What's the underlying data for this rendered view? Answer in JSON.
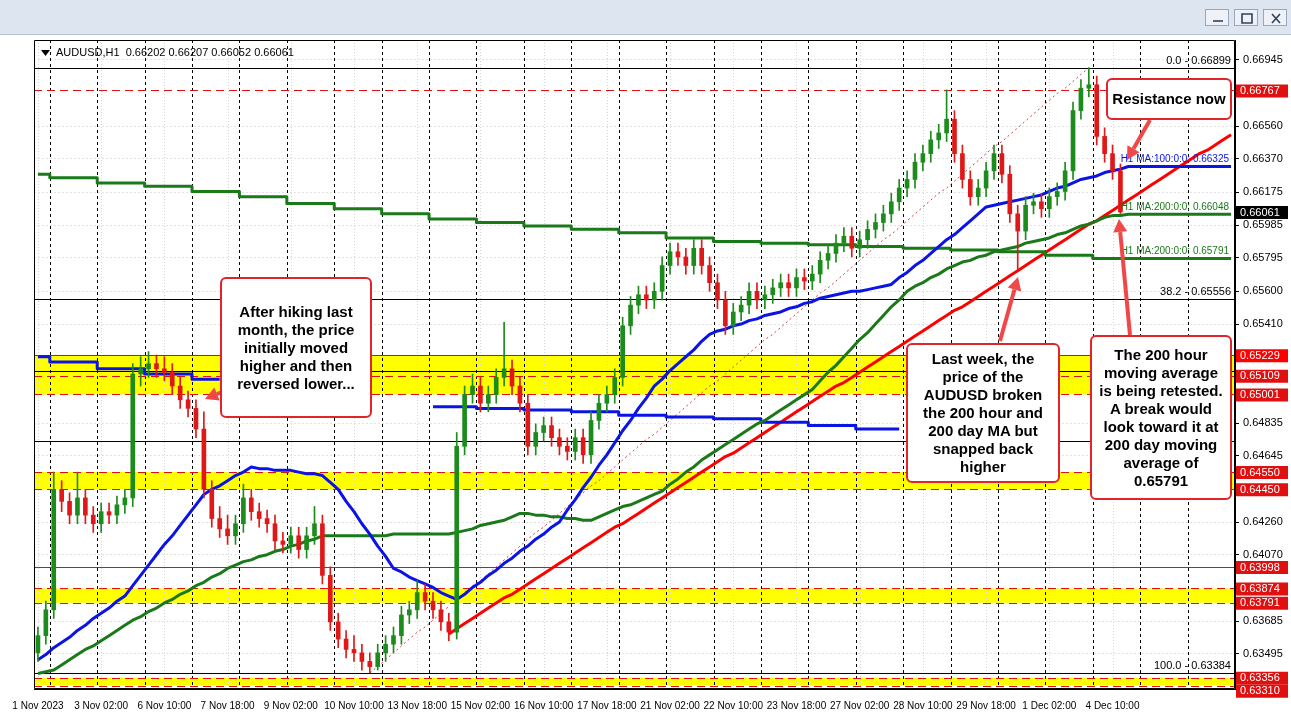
{
  "chart_data": {
    "type": "candlestick",
    "title": "AUDUSD,H1  0.66202 0.66207 0.66052 0.66061",
    "categories": [
      "1 Nov 2023",
      null,
      null,
      null,
      null,
      null,
      null,
      null,
      "3 Nov 02:00",
      null,
      null,
      null,
      null,
      null,
      null,
      null,
      "6 Nov 10:00",
      null,
      null,
      null,
      null,
      null,
      null,
      null,
      "7 Nov 18:00",
      null,
      null,
      null,
      null,
      null,
      null,
      null,
      "9 Nov 02:00",
      null,
      null,
      null,
      null,
      null,
      null,
      null,
      "10 Nov 10:00",
      null,
      null,
      null,
      null,
      null,
      null,
      null,
      "13 Nov 18:00",
      null,
      null,
      null,
      null,
      null,
      null,
      null,
      "15 Nov 02:00",
      null,
      null,
      null,
      null,
      null,
      null,
      null,
      "16 Nov 10:00",
      null,
      null,
      null,
      null,
      null,
      null,
      null,
      "17 Nov 18:00",
      null,
      null,
      null,
      null,
      null,
      null,
      null,
      "21 Nov 02:00",
      null,
      null,
      null,
      null,
      null,
      null,
      null,
      "22 Nov 10:00",
      null,
      null,
      null,
      null,
      null,
      null,
      null,
      "23 Nov 18:00",
      null,
      null,
      null,
      null,
      null,
      null,
      null,
      "27 Nov 02:00",
      null,
      null,
      null,
      null,
      null,
      null,
      null,
      "28 Nov 10:00",
      null,
      null,
      null,
      null,
      null,
      null,
      null,
      "29 Nov 18:00",
      null,
      null,
      null,
      null,
      null,
      null,
      null,
      "1 Dec 02:00",
      null,
      null,
      null,
      null,
      null,
      null,
      null,
      "4 Dec 10:00",
      null,
      null,
      null,
      null,
      null,
      null,
      null,
      null,
      null,
      null,
      null,
      null,
      null,
      null,
      null
    ],
    "ohlc": [
      [
        0.635,
        0.6365,
        0.6345,
        0.636
      ],
      [
        0.636,
        0.638,
        0.6355,
        0.6375
      ],
      [
        0.6375,
        0.6455,
        0.637,
        0.6445
      ],
      [
        0.6445,
        0.645,
        0.6432,
        0.6438
      ],
      [
        0.6438,
        0.6443,
        0.6425,
        0.643
      ],
      [
        0.643,
        0.6455,
        0.6425,
        0.644
      ],
      [
        0.644,
        0.6445,
        0.6425,
        0.643
      ],
      [
        0.643,
        0.6435,
        0.642,
        0.6425
      ],
      [
        0.6425,
        0.6437,
        0.642,
        0.6432
      ],
      [
        0.6432,
        0.6437,
        0.6425,
        0.643
      ],
      [
        0.643,
        0.6441,
        0.6425,
        0.6436
      ],
      [
        0.6436,
        0.6445,
        0.6431,
        0.644
      ],
      [
        0.644,
        0.6518,
        0.6435,
        0.6512
      ],
      [
        0.6512,
        0.6522,
        0.6505,
        0.6515
      ],
      [
        0.6515,
        0.6525,
        0.651,
        0.6518
      ],
      [
        0.6518,
        0.6523,
        0.651,
        0.6515
      ],
      [
        0.6515,
        0.6522,
        0.6508,
        0.6513
      ],
      [
        0.6513,
        0.6518,
        0.65,
        0.6505
      ],
      [
        0.6505,
        0.651,
        0.6492,
        0.6497
      ],
      [
        0.6497,
        0.6502,
        0.6487,
        0.6492
      ],
      [
        0.6492,
        0.6497,
        0.6475,
        0.648
      ],
      [
        0.648,
        0.649,
        0.644,
        0.6445
      ],
      [
        0.6445,
        0.645,
        0.6423,
        0.6428
      ],
      [
        0.6428,
        0.6435,
        0.6417,
        0.6422
      ],
      [
        0.6422,
        0.643,
        0.6413,
        0.6418
      ],
      [
        0.6418,
        0.643,
        0.6413,
        0.6425
      ],
      [
        0.6425,
        0.6448,
        0.642,
        0.644
      ],
      [
        0.644,
        0.6445,
        0.6427,
        0.6432
      ],
      [
        0.6432,
        0.6437,
        0.6423,
        0.6428
      ],
      [
        0.6428,
        0.6433,
        0.642,
        0.6425
      ],
      [
        0.6425,
        0.643,
        0.641,
        0.6415
      ],
      [
        0.6415,
        0.642,
        0.6408,
        0.6413
      ],
      [
        0.6413,
        0.6423,
        0.6408,
        0.6418
      ],
      [
        0.6418,
        0.6423,
        0.6405,
        0.641
      ],
      [
        0.641,
        0.6423,
        0.6405,
        0.6418
      ],
      [
        0.6418,
        0.6435,
        0.6413,
        0.6425
      ],
      [
        0.6425,
        0.643,
        0.639,
        0.6395
      ],
      [
        0.6395,
        0.64,
        0.6363,
        0.6368
      ],
      [
        0.6368,
        0.6373,
        0.6353,
        0.6358
      ],
      [
        0.6358,
        0.6363,
        0.6347,
        0.6352
      ],
      [
        0.6352,
        0.636,
        0.6345,
        0.635
      ],
      [
        0.635,
        0.6355,
        0.634,
        0.6345
      ],
      [
        0.6345,
        0.635,
        0.63384,
        0.6342
      ],
      [
        0.6342,
        0.6355,
        0.634,
        0.635
      ],
      [
        0.635,
        0.636,
        0.6345,
        0.6355
      ],
      [
        0.6355,
        0.6365,
        0.635,
        0.636
      ],
      [
        0.636,
        0.6377,
        0.6355,
        0.6372
      ],
      [
        0.6372,
        0.638,
        0.6367,
        0.6375
      ],
      [
        0.6375,
        0.6392,
        0.637,
        0.6385
      ],
      [
        0.6385,
        0.639,
        0.6375,
        0.638
      ],
      [
        0.638,
        0.6385,
        0.637,
        0.6375
      ],
      [
        0.6375,
        0.638,
        0.6363,
        0.6368
      ],
      [
        0.6368,
        0.6373,
        0.6357,
        0.6362
      ],
      [
        0.6362,
        0.6478,
        0.6358,
        0.647
      ],
      [
        0.647,
        0.6505,
        0.6465,
        0.65
      ],
      [
        0.65,
        0.6512,
        0.6495,
        0.6505
      ],
      [
        0.6505,
        0.651,
        0.649,
        0.6495
      ],
      [
        0.6495,
        0.6505,
        0.649,
        0.65
      ],
      [
        0.65,
        0.6515,
        0.6495,
        0.651
      ],
      [
        0.651,
        0.6542,
        0.6505,
        0.6515
      ],
      [
        0.6515,
        0.652,
        0.65,
        0.6505
      ],
      [
        0.6505,
        0.651,
        0.649,
        0.6495
      ],
      [
        0.6495,
        0.65,
        0.6465,
        0.647
      ],
      [
        0.647,
        0.6483,
        0.6465,
        0.6478
      ],
      [
        0.6478,
        0.6487,
        0.6473,
        0.6482
      ],
      [
        0.6482,
        0.6487,
        0.647,
        0.6475
      ],
      [
        0.6475,
        0.648,
        0.6465,
        0.647
      ],
      [
        0.647,
        0.6475,
        0.6462,
        0.6467
      ],
      [
        0.6467,
        0.648,
        0.6462,
        0.6475
      ],
      [
        0.6475,
        0.648,
        0.646,
        0.6465
      ],
      [
        0.6465,
        0.649,
        0.646,
        0.6485
      ],
      [
        0.6485,
        0.65,
        0.648,
        0.6495
      ],
      [
        0.6495,
        0.6505,
        0.649,
        0.65
      ],
      [
        0.65,
        0.6515,
        0.6495,
        0.651
      ],
      [
        0.651,
        0.6545,
        0.6505,
        0.654
      ],
      [
        0.654,
        0.6557,
        0.6535,
        0.6552
      ],
      [
        0.6552,
        0.6563,
        0.6547,
        0.6558
      ],
      [
        0.6558,
        0.6563,
        0.655,
        0.6555
      ],
      [
        0.6555,
        0.6565,
        0.655,
        0.656
      ],
      [
        0.656,
        0.658,
        0.6555,
        0.6575
      ],
      [
        0.6575,
        0.6588,
        0.657,
        0.6583
      ],
      [
        0.6583,
        0.6588,
        0.6575,
        0.658
      ],
      [
        0.658,
        0.6585,
        0.657,
        0.6575
      ],
      [
        0.6575,
        0.659,
        0.657,
        0.6585
      ],
      [
        0.6585,
        0.659,
        0.657,
        0.6575
      ],
      [
        0.6575,
        0.658,
        0.656,
        0.6565
      ],
      [
        0.6565,
        0.657,
        0.655,
        0.6555
      ],
      [
        0.6555,
        0.656,
        0.6535,
        0.654
      ],
      [
        0.654,
        0.6553,
        0.6535,
        0.6548
      ],
      [
        0.6548,
        0.6557,
        0.6543,
        0.6552
      ],
      [
        0.6552,
        0.6565,
        0.6547,
        0.656
      ],
      [
        0.656,
        0.6565,
        0.655,
        0.6555
      ],
      [
        0.6555,
        0.6563,
        0.655,
        0.6558
      ],
      [
        0.6558,
        0.6567,
        0.6553,
        0.6562
      ],
      [
        0.6562,
        0.657,
        0.6557,
        0.6565
      ],
      [
        0.6565,
        0.657,
        0.6557,
        0.6562
      ],
      [
        0.6562,
        0.6573,
        0.6557,
        0.6568
      ],
      [
        0.6568,
        0.6573,
        0.6561,
        0.6566
      ],
      [
        0.6566,
        0.6575,
        0.6561,
        0.657
      ],
      [
        0.657,
        0.6583,
        0.6565,
        0.6578
      ],
      [
        0.6578,
        0.6587,
        0.6573,
        0.6582
      ],
      [
        0.6582,
        0.6593,
        0.6577,
        0.6588
      ],
      [
        0.6588,
        0.6597,
        0.6583,
        0.6592
      ],
      [
        0.6592,
        0.6597,
        0.658,
        0.6585
      ],
      [
        0.6585,
        0.6595,
        0.658,
        0.659
      ],
      [
        0.659,
        0.6601,
        0.6585,
        0.6596
      ],
      [
        0.6596,
        0.6605,
        0.6591,
        0.66
      ],
      [
        0.66,
        0.661,
        0.6595,
        0.6605
      ],
      [
        0.6605,
        0.6617,
        0.66,
        0.6612
      ],
      [
        0.6612,
        0.6625,
        0.6607,
        0.662
      ],
      [
        0.662,
        0.663,
        0.6615,
        0.6625
      ],
      [
        0.6625,
        0.664,
        0.662,
        0.6635
      ],
      [
        0.6635,
        0.6645,
        0.663,
        0.664
      ],
      [
        0.664,
        0.6653,
        0.6635,
        0.6648
      ],
      [
        0.6648,
        0.6657,
        0.6643,
        0.6652
      ],
      [
        0.6652,
        0.6677,
        0.6647,
        0.666
      ],
      [
        0.666,
        0.6665,
        0.6635,
        0.664
      ],
      [
        0.664,
        0.6645,
        0.662,
        0.6625
      ],
      [
        0.6625,
        0.663,
        0.661,
        0.6615
      ],
      [
        0.6615,
        0.6625,
        0.661,
        0.662
      ],
      [
        0.662,
        0.6635,
        0.6615,
        0.663
      ],
      [
        0.663,
        0.6645,
        0.6625,
        0.664
      ],
      [
        0.664,
        0.6645,
        0.6623,
        0.6628
      ],
      [
        0.6628,
        0.6633,
        0.66,
        0.6605
      ],
      [
        0.6605,
        0.661,
        0.6573,
        0.6595
      ],
      [
        0.6595,
        0.6615,
        0.659,
        0.661
      ],
      [
        0.661,
        0.6617,
        0.6605,
        0.6612
      ],
      [
        0.6612,
        0.6617,
        0.6603,
        0.6608
      ],
      [
        0.6608,
        0.662,
        0.6603,
        0.6615
      ],
      [
        0.6615,
        0.6623,
        0.661,
        0.6618
      ],
      [
        0.6618,
        0.6635,
        0.6613,
        0.663
      ],
      [
        0.663,
        0.667,
        0.6625,
        0.6665
      ],
      [
        0.6665,
        0.6683,
        0.666,
        0.6678
      ],
      [
        0.6678,
        0.66899,
        0.6673,
        0.668
      ],
      [
        0.668,
        0.6685,
        0.6645,
        0.665
      ],
      [
        0.665,
        0.6655,
        0.6635,
        0.664
      ],
      [
        0.664,
        0.6645,
        0.6625,
        0.663
      ],
      [
        0.663,
        0.6634,
        0.66052,
        0.66061
      ],
      null,
      null,
      null,
      null,
      null,
      null,
      null,
      null,
      null,
      null,
      null,
      null,
      null,
      null
    ],
    "series": [
      {
        "type": "line",
        "name": "H1 MA:100:0:0: 0.66325",
        "color": "#0a14e6",
        "values": [
          0.6346,
          0.6349,
          0.6353,
          0.6356,
          0.6359,
          0.6363,
          0.6366,
          0.637,
          0.6373,
          0.6376,
          0.638,
          0.6383,
          0.6389,
          0.6395,
          0.6401,
          0.6407,
          0.6413,
          0.6418,
          0.6424,
          0.643,
          0.6436,
          0.6442,
          0.6445,
          0.6447,
          0.645,
          0.6453,
          0.6455,
          0.6458,
          0.6457,
          0.6457,
          0.6456,
          0.6456,
          0.6456,
          0.6455,
          0.6454,
          0.6454,
          0.6453,
          0.6449,
          0.6445,
          0.6438,
          0.6432,
          0.6425,
          0.6419,
          0.6412,
          0.6406,
          0.6399,
          0.6397,
          0.6394,
          0.6392,
          0.639,
          0.6388,
          0.6385,
          0.6383,
          0.6381,
          0.6384,
          0.6388,
          0.6391,
          0.6395,
          0.6398,
          0.6402,
          0.6405,
          0.6409,
          0.6412,
          0.6416,
          0.6419,
          0.6423,
          0.6426,
          0.6433,
          0.6439,
          0.6446,
          0.6452,
          0.6459,
          0.6465,
          0.6472,
          0.6479,
          0.6485,
          0.6492,
          0.6498,
          0.6505,
          0.6509,
          0.6514,
          0.6518,
          0.6522,
          0.6526,
          0.6531,
          0.6535,
          0.6537,
          0.6538,
          0.654,
          0.6541,
          0.6543,
          0.6544,
          0.6546,
          0.6547,
          0.6548,
          0.655,
          0.6551,
          0.6553,
          0.6554,
          0.6556,
          0.6557,
          0.6558,
          0.6559,
          0.656,
          0.656,
          0.6561,
          0.6562,
          0.6563,
          0.6564,
          0.6568,
          0.6571,
          0.6575,
          0.6578,
          0.6582,
          0.6586,
          0.659,
          0.6593,
          0.6597,
          0.6601,
          0.6605,
          0.6609,
          0.661,
          0.6611,
          0.6612,
          0.6613,
          0.6614,
          0.6615,
          0.6616,
          0.6618,
          0.662,
          0.6621,
          0.6623,
          0.6625,
          0.6626,
          0.6627,
          0.6629,
          0.663,
          0.6631,
          0.66325,
          0.66325,
          0.66325,
          0.66325,
          0.66325,
          0.66325,
          0.66325,
          0.66325,
          0.66325,
          0.66325,
          0.66325,
          0.66325,
          0.66325,
          0.66325
        ]
      },
      {
        "type": "line",
        "name": "H1 MA:200:0:0: 0.66048",
        "color": "#1a7a1a",
        "values": [
          0.6338,
          0.6339,
          0.634,
          0.6343,
          0.6346,
          0.6349,
          0.6352,
          0.6354,
          0.6357,
          0.636,
          0.6363,
          0.6366,
          0.6369,
          0.6371,
          0.6374,
          0.6376,
          0.6379,
          0.6381,
          0.6384,
          0.6386,
          0.6389,
          0.6391,
          0.6394,
          0.6396,
          0.6399,
          0.6401,
          0.6403,
          0.6404,
          0.6406,
          0.6407,
          0.6409,
          0.641,
          0.6412,
          0.6413,
          0.6415,
          0.6416,
          0.6418,
          0.6418,
          0.6418,
          0.6418,
          0.6418,
          0.6418,
          0.6418,
          0.6418,
          0.6418,
          0.6419,
          0.6419,
          0.6419,
          0.6419,
          0.6419,
          0.6419,
          0.6419,
          0.6419,
          0.642,
          0.6421,
          0.6422,
          0.6424,
          0.6425,
          0.6426,
          0.6427,
          0.6429,
          0.6431,
          0.6431,
          0.643,
          0.643,
          0.6429,
          0.6429,
          0.6428,
          0.6428,
          0.6427,
          0.6427,
          0.6429,
          0.6431,
          0.6433,
          0.6435,
          0.6436,
          0.6438,
          0.644,
          0.6442,
          0.6444,
          0.6448,
          0.6451,
          0.6455,
          0.6458,
          0.6462,
          0.6465,
          0.6468,
          0.6471,
          0.6474,
          0.6477,
          0.648,
          0.6483,
          0.6485,
          0.6488,
          0.6491,
          0.6494,
          0.6497,
          0.65,
          0.6503,
          0.6508,
          0.6513,
          0.6517,
          0.6522,
          0.6527,
          0.6532,
          0.6536,
          0.6541,
          0.6546,
          0.6551,
          0.6555,
          0.656,
          0.6563,
          0.6565,
          0.6568,
          0.657,
          0.6573,
          0.6575,
          0.6577,
          0.6578,
          0.658,
          0.6581,
          0.6583,
          0.6584,
          0.6585,
          0.6586,
          0.6588,
          0.6589,
          0.659,
          0.6591,
          0.6593,
          0.6594,
          0.6596,
          0.6598,
          0.6599,
          0.6601,
          0.6603,
          0.6604,
          0.6604,
          0.66048,
          0.66048,
          0.66048,
          0.66048,
          0.66048,
          0.66048,
          0.66048,
          0.66048,
          0.66048,
          0.66048,
          0.66048,
          0.66048,
          0.66048,
          0.66048
        ]
      },
      {
        "type": "step",
        "name": "H1 MA:200:0:0: 0.65791",
        "color": "#1a7a1a",
        "values": [
          0.6628,
          0.6628,
          0.6626,
          0.6626,
          0.6626,
          0.6626,
          0.6626,
          0.6626,
          0.6623,
          0.6623,
          0.6623,
          0.6623,
          0.6623,
          0.6623,
          0.6621,
          0.6621,
          0.6621,
          0.6621,
          0.6621,
          0.6621,
          0.6618,
          0.6618,
          0.6618,
          0.6618,
          0.6618,
          0.6618,
          0.6615,
          0.6615,
          0.6615,
          0.6615,
          0.6615,
          0.6615,
          0.6611,
          0.6611,
          0.6611,
          0.6611,
          0.6611,
          0.6611,
          0.6608,
          0.6608,
          0.6608,
          0.6608,
          0.6608,
          0.6608,
          0.6605,
          0.6605,
          0.6605,
          0.6605,
          0.6605,
          0.6605,
          0.6602,
          0.6602,
          0.6602,
          0.6602,
          0.6602,
          0.6602,
          0.66,
          0.66,
          0.66,
          0.66,
          0.66,
          0.66,
          0.6598,
          0.6598,
          0.6598,
          0.6598,
          0.6598,
          0.6598,
          0.6596,
          0.6596,
          0.6596,
          0.6596,
          0.6596,
          0.6596,
          0.6594,
          0.6594,
          0.6594,
          0.6594,
          0.6594,
          0.6594,
          0.6591,
          0.6591,
          0.6591,
          0.6591,
          0.6591,
          0.6591,
          0.6589,
          0.6589,
          0.6589,
          0.6589,
          0.6589,
          0.6589,
          0.6588,
          0.6588,
          0.6588,
          0.6588,
          0.6588,
          0.6588,
          0.6587,
          0.6587,
          0.6587,
          0.6587,
          0.6587,
          0.6587,
          0.6586,
          0.6586,
          0.6586,
          0.6586,
          0.6586,
          0.6586,
          0.6585,
          0.6585,
          0.6585,
          0.6585,
          0.6585,
          0.6585,
          0.6584,
          0.6584,
          0.6584,
          0.6584,
          0.6584,
          0.6584,
          0.6583,
          0.6583,
          0.6583,
          0.6583,
          0.6583,
          0.6583,
          0.6581,
          0.6581,
          0.6581,
          0.6581,
          0.6581,
          0.6581,
          0.65791,
          0.65791,
          0.65791,
          0.65791,
          0.65791,
          0.65791,
          0.65791,
          0.65791,
          0.65791,
          0.65791,
          0.65791,
          0.65791,
          0.65791,
          0.65791,
          0.65791,
          0.65791,
          0.65791,
          0.65791
        ]
      },
      {
        "type": "step",
        "color": "#0a14e6",
        "values": [
          0.6522,
          0.6522,
          0.6519,
          0.6519,
          0.6519,
          0.6519,
          0.6519,
          0.6519,
          0.6515,
          0.6515,
          0.6515,
          0.6515,
          0.6515,
          0.6515,
          0.6512,
          0.6512,
          0.6512,
          0.6512,
          0.6512,
          0.6512,
          0.6509,
          0.6509,
          0.6509,
          0.6509,
          null,
          null,
          null,
          null,
          null,
          null,
          null,
          null,
          null,
          null,
          null,
          null,
          null,
          null,
          null,
          null,
          null,
          null,
          null,
          null,
          null,
          null,
          null,
          null,
          null,
          null,
          0.6493,
          0.6493,
          0.6493,
          0.6493,
          0.6493,
          0.6493,
          0.6492,
          0.6492,
          0.6492,
          0.6492,
          0.6492,
          0.6492,
          0.6491,
          0.6491,
          0.6491,
          0.6491,
          0.6491,
          0.6491,
          0.649,
          0.649,
          0.649,
          0.649,
          0.649,
          0.649,
          0.6488,
          0.6488,
          0.6488,
          0.6488,
          0.6488,
          0.6488,
          0.6487,
          0.6487,
          0.6487,
          0.6487,
          0.6487,
          0.6487,
          0.6486,
          0.6486,
          0.6486,
          0.6486,
          0.6486,
          0.6486,
          0.6484,
          0.6484,
          0.6484,
          0.6484,
          0.6484,
          0.6484,
          0.6482,
          0.6482,
          0.6482,
          0.6482,
          0.6482,
          0.6482,
          0.648,
          0.648,
          0.648,
          0.648,
          0.648,
          0.648,
          null,
          null,
          null,
          null,
          null,
          null,
          null,
          null,
          null,
          null,
          null,
          null,
          null,
          null,
          null,
          null,
          null,
          null,
          null,
          null,
          null,
          null,
          null,
          null,
          null,
          null,
          null,
          null,
          null,
          null,
          null,
          null,
          null,
          null,
          null,
          null,
          null,
          null,
          null,
          null,
          null,
          null
        ]
      },
      {
        "type": "line",
        "color": "#ff0000",
        "values": [
          null,
          null,
          null,
          null,
          null,
          null,
          null,
          null,
          null,
          null,
          null,
          null,
          null,
          null,
          null,
          null,
          null,
          null,
          null,
          null,
          null,
          null,
          null,
          null,
          null,
          null,
          null,
          null,
          null,
          null,
          null,
          null,
          null,
          null,
          null,
          null,
          null,
          null,
          null,
          null,
          null,
          null,
          null,
          null,
          null,
          null,
          null,
          null,
          null,
          null,
          null,
          null,
          0.6361,
          0.6364,
          0.6367,
          0.637,
          0.6373,
          0.6376,
          0.6379,
          0.6382,
          0.6384,
          0.6387,
          0.639,
          0.6393,
          0.6396,
          0.6399,
          0.6402,
          0.6405,
          0.6408,
          0.6411,
          0.6414,
          0.6417,
          0.642,
          0.6423,
          0.6425,
          0.6428,
          0.6431,
          0.6434,
          0.6437,
          0.644,
          0.6443,
          0.6446,
          0.6449,
          0.6452,
          0.6455,
          0.6458,
          0.6461,
          0.6464,
          0.6466,
          0.6469,
          0.6472,
          0.6475,
          0.6478,
          0.6481,
          0.6484,
          0.6487,
          0.649,
          0.6493,
          0.6496,
          0.6499,
          0.6502,
          0.6505,
          0.6507,
          0.651,
          0.6513,
          0.6516,
          0.6519,
          0.6522,
          0.6525,
          0.6528,
          0.6531,
          0.6534,
          0.6537,
          0.654,
          0.6543,
          0.6546,
          0.6549,
          0.6551,
          0.6554,
          0.6557,
          0.656,
          0.6563,
          0.6566,
          0.6569,
          0.6572,
          0.6575,
          0.6578,
          0.6581,
          0.6584,
          0.6587,
          0.659,
          0.6593,
          0.6596,
          0.6599,
          0.6601,
          0.6604,
          0.6607,
          0.661,
          0.6613,
          0.6616,
          0.6619,
          0.6622,
          0.6625,
          0.6628,
          0.6631,
          0.6634,
          0.6637,
          0.664,
          0.6642,
          0.6645,
          0.6648,
          0.6651
        ]
      },
      {
        "type": "line",
        "color": "#d04040",
        "line_style": "dotted",
        "values": [
          null,
          null,
          null,
          null,
          null,
          null,
          null,
          null,
          null,
          null,
          null,
          null,
          null,
          null,
          null,
          null,
          null,
          null,
          null,
          null,
          null,
          null,
          null,
          null,
          null,
          null,
          null,
          null,
          null,
          null,
          null,
          null,
          null,
          null,
          null,
          null,
          null,
          null,
          null,
          null,
          null,
          null,
          0.63384,
          0.6342,
          0.6346,
          0.635,
          0.6354,
          0.6358,
          0.6362,
          0.6365,
          0.6369,
          0.6373,
          0.6377,
          null,
          0.6385,
          0.6389,
          0.6392,
          0.6396,
          0.64,
          0.6404,
          0.6408,
          0.6412,
          0.6416,
          0.642,
          0.6423,
          0.6427,
          0.6431,
          0.6435,
          0.6439,
          0.6443,
          0.6447,
          0.645,
          0.6454,
          0.6458,
          0.6462,
          0.6466,
          0.647,
          0.6474,
          0.6477,
          0.6481,
          0.6485,
          0.6489,
          0.6493,
          0.6497,
          0.6501,
          0.6505,
          0.6508,
          0.6512,
          0.6516,
          0.652,
          0.6524,
          0.6528,
          0.6532,
          0.6535,
          0.6539,
          0.6543,
          0.6547,
          0.6551,
          0.6555,
          0.6559,
          0.6562,
          0.6566,
          0.657,
          0.6574,
          0.6578,
          0.6582,
          0.6586,
          0.659,
          0.6593,
          0.6597,
          0.6601,
          0.6605,
          0.6609,
          0.6613,
          0.6617,
          0.662,
          0.6624,
          0.6628,
          0.6632,
          0.6636,
          0.664,
          0.6644,
          0.6647,
          0.6651,
          0.6655,
          0.6659,
          0.6663,
          0.6667,
          0.6671,
          0.6675,
          0.6678,
          0.6682,
          0.6686,
          0.66899,
          null,
          null,
          null,
          null,
          null,
          null,
          null,
          null,
          null,
          null,
          null,
          null,
          null,
          null,
          null,
          null,
          null,
          null
        ]
      }
    ],
    "ylim": [
      0.6329,
      0.6706
    ],
    "yticks": [
      0.66945,
      {
        "value": 0.6656,
        "label": "0.66560"
      },
      {
        "value": 0.6637,
        "label": "0.66370"
      },
      0.66175,
      0.65985,
      0.65795,
      {
        "value": 0.656,
        "label": "0.65600"
      },
      {
        "value": 0.6541,
        "label": "0.65410"
      },
      0.64835,
      0.64645,
      {
        "value": 0.6426,
        "label": "0.64260"
      },
      {
        "value": 0.6407,
        "label": "0.64070"
      },
      0.63685,
      0.63495
    ],
    "grid": true,
    "bands": [
      {
        "axis": "y",
        "from": 0.65001,
        "to": 0.65229,
        "color": "#ffff00"
      },
      {
        "axis": "y",
        "from": 0.6445,
        "to": 0.6455,
        "color": "#ffff00"
      },
      {
        "axis": "y",
        "from": 0.63791,
        "to": 0.63874,
        "color": "#ffff00"
      },
      {
        "axis": "y",
        "from": 0.6331,
        "to": 0.63356,
        "color": "#ffff00"
      }
    ],
    "ref_lines": [
      {
        "axis": "y",
        "value": 0.66899,
        "color": "#000000"
      },
      {
        "axis": "y",
        "value": 0.65556,
        "color": "#000000"
      },
      {
        "axis": "y",
        "value": 0.6514,
        "color": "#000000"
      },
      {
        "axis": "y",
        "value": 0.6473,
        "color": "#000000"
      },
      {
        "axis": "y",
        "value": 0.63384,
        "color": "#000000"
      },
      {
        "axis": "y",
        "value": 0.66767,
        "label": "0.66767",
        "color": "#e01010",
        "line_style": "dashed"
      },
      {
        "axis": "y",
        "value": 0.65229,
        "label": "0.65229",
        "color": "#ff0000"
      },
      {
        "axis": "y",
        "value": 0.65109,
        "label": "0.65109",
        "color": "#e01010",
        "line_style": "dashed"
      },
      {
        "axis": "y",
        "value": 0.65001,
        "label": "0.65001",
        "color": "#e01010",
        "line_style": "dashed"
      },
      {
        "axis": "y",
        "value": 0.6455,
        "label": "0.64550",
        "color": "#e01010",
        "line_style": "dashed"
      },
      {
        "axis": "y",
        "value": 0.6445,
        "label": "0.64450",
        "color": "#e01010",
        "line_style": "dashed"
      },
      {
        "axis": "y",
        "value": 0.63998,
        "label": "0.63998",
        "color": "#e01010"
      },
      {
        "axis": "y",
        "value": 0.63874,
        "label": "0.63874",
        "color": "#e01010",
        "line_style": "dashed"
      },
      {
        "axis": "y",
        "value": 0.63791,
        "label": "0.63791",
        "color": "#e01010",
        "line_style": "dashed"
      },
      {
        "axis": "y",
        "value": 0.63356,
        "label": "0.63356",
        "color": "#e01010",
        "line_style": "dashed"
      },
      {
        "axis": "y",
        "value": 0.6331,
        "label": "0.63310",
        "color": "#e01010",
        "line_style": "dashed"
      }
    ],
    "annotations": [
      "After hiking last month, the price initially moved higher and then reversed lower...",
      "Resistance now",
      "Last week, the price of the AUDUSD broken the 200 hour and 200 day MA but snapped back higher",
      "The 200 hour moving average is being retested. A break would look toward it at 200 day moving average of 0.65791",
      "0.66061",
      {
        "text": "0.0 - 0.66899",
        "y": 0.66899
      },
      {
        "text": "38.2 - 0.65556",
        "y": 0.65556
      },
      {
        "text": "100.0 - 0.63384",
        "y": 0.63384
      }
    ]
  }
}
